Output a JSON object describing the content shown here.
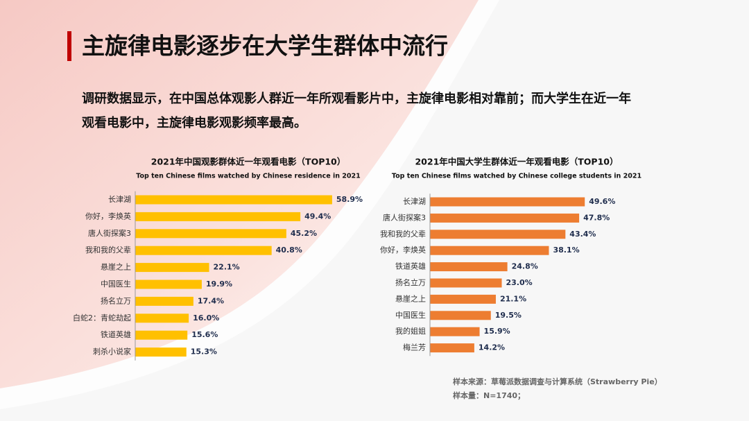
{
  "title": "主旋律电影逐步在大学生群体中流行",
  "description": [
    "调研数据显示，在中国总体观影人群近一年所观看影片中，主旋律电影相对靠前；而大学生在近一年",
    "观看电影中，主旋律电影观影频率最高。"
  ],
  "source": [
    "样本来源：草莓派数据调查与计算系统（Strawberry Pie）",
    "样本量：N=1740；"
  ],
  "chart_data": [
    {
      "type": "bar",
      "orientation": "horizontal",
      "title": "2021年中国观影群体近一年观看电影（TOP10）",
      "subtitle": "Top ten Chinese films watched by Chinese residence in 2021",
      "categories": [
        "长津湖",
        "你好，李焕英",
        "唐人街探案3",
        "我和我的父辈",
        "悬崖之上",
        "中国医生",
        "扬名立万",
        "白蛇2：青蛇劫起",
        "铁道英雄",
        "刺杀小说家"
      ],
      "values": [
        58.9,
        49.4,
        45.2,
        40.8,
        22.1,
        19.9,
        17.4,
        16.0,
        15.6,
        15.3
      ],
      "value_labels": [
        "58.9%",
        "49.4%",
        "45.2%",
        "40.8%",
        "22.1%",
        "19.9%",
        "17.4%",
        "16.0%",
        "15.6%",
        "15.3%"
      ],
      "color": "#FFC000"
    },
    {
      "type": "bar",
      "orientation": "horizontal",
      "title": "2021年中国大学生群体近一年观看电影（TOP10）",
      "subtitle": "Top ten Chinese films watched by Chinese college students in 2021",
      "categories": [
        "长津湖",
        "唐人街探案3",
        "我和我的父辈",
        "你好，李焕英",
        "铁道英雄",
        "扬名立万",
        "悬崖之上",
        "中国医生",
        "我的姐姐",
        "梅兰芳"
      ],
      "values": [
        49.6,
        47.8,
        43.4,
        38.1,
        24.8,
        23.0,
        21.1,
        19.5,
        15.9,
        14.2
      ],
      "value_labels": [
        "49.6%",
        "47.8%",
        "43.4%",
        "38.1%",
        "24.8%",
        "23.0%",
        "21.1%",
        "19.5%",
        "15.9%",
        "14.2%"
      ],
      "color": "#ED7D31"
    }
  ]
}
